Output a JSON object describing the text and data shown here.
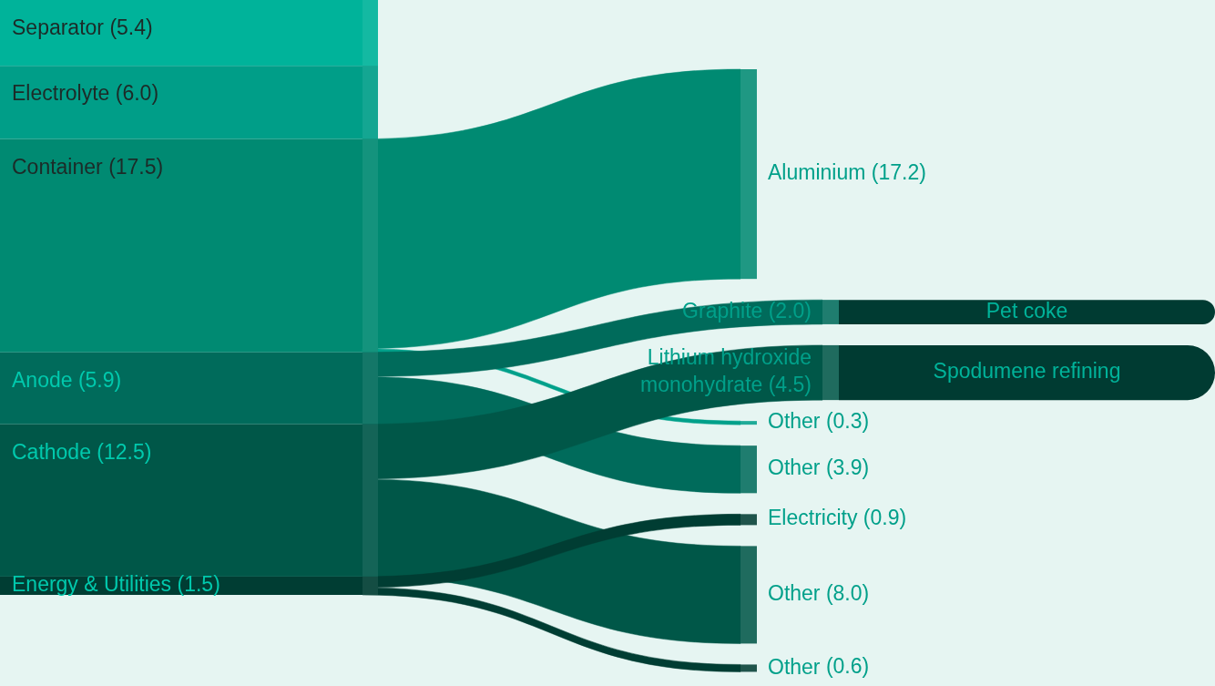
{
  "chart_data": {
    "type": "other",
    "categories": [
      "Separator",
      "Electrolyte",
      "Container",
      "Anode",
      "Cathode",
      "Energy & Utilities",
      "Aluminium",
      "Graphite",
      "Lithium hydroxide monohydrate",
      "Other",
      "Other",
      "Electricity",
      "Other",
      "Other",
      "Pet coke",
      "Spodumene refining"
    ],
    "value_labels": [
      "(5.4)",
      "(6.0)",
      "(17.5)",
      "(5.9)",
      "(12.5)",
      "(1.5)",
      "(17.2)",
      "(2.0)",
      "(4.5)",
      "(0.3)",
      "(3.9)",
      "(0.9)",
      "(8.0)",
      "(0.6)",
      null,
      null
    ],
    "values": [
      5.4,
      6.0,
      17.5,
      5.9,
      12.5,
      1.5,
      17.2,
      2.0,
      4.5,
      0.3,
      3.9,
      0.9,
      8.0,
      0.6,
      null,
      null
    ],
    "colors": [
      "#00b39a",
      "#009e88",
      "#008a72",
      "#006b5b",
      "#005748",
      "#003d33",
      "#008a72",
      "#006b5b",
      "#005748",
      "#00a08a",
      "#006b5b",
      "#003d33",
      "#005748",
      "#003d33",
      "#003b32",
      "#003b32"
    ],
    "cells": [
      [
        null,
        null,
        null,
        null,
        null,
        null,
        null,
        null,
        null,
        null,
        null,
        null,
        null,
        null,
        null,
        null
      ],
      [
        null,
        null,
        null,
        null,
        null,
        null,
        null,
        null,
        null,
        null,
        null,
        null,
        null,
        null,
        null,
        null
      ],
      [
        null,
        null,
        null,
        null,
        null,
        null,
        true,
        null,
        null,
        true,
        null,
        null,
        null,
        null,
        null,
        null
      ],
      [
        null,
        null,
        null,
        null,
        null,
        null,
        null,
        true,
        null,
        null,
        true,
        null,
        null,
        null,
        null,
        null
      ],
      [
        null,
        null,
        null,
        null,
        null,
        null,
        null,
        null,
        true,
        null,
        null,
        null,
        true,
        null,
        null,
        null
      ],
      [
        null,
        null,
        null,
        null,
        null,
        null,
        null,
        null,
        null,
        null,
        null,
        true,
        null,
        true,
        null,
        null
      ],
      [
        null,
        null,
        null,
        null,
        null,
        null,
        null,
        null,
        null,
        null,
        null,
        null,
        null,
        null,
        null,
        null
      ],
      [
        null,
        null,
        null,
        null,
        null,
        null,
        null,
        null,
        null,
        null,
        null,
        null,
        null,
        null,
        true,
        null
      ],
      [
        null,
        null,
        null,
        null,
        null,
        null,
        null,
        null,
        null,
        null,
        null,
        null,
        null,
        null,
        null,
        true
      ],
      [
        null,
        null,
        null,
        null,
        null,
        null,
        null,
        null,
        null,
        null,
        null,
        null,
        null,
        null,
        null,
        null
      ],
      [
        null,
        null,
        null,
        null,
        null,
        null,
        null,
        null,
        null,
        null,
        null,
        null,
        null,
        null,
        null,
        null
      ],
      [
        null,
        null,
        null,
        null,
        null,
        null,
        null,
        null,
        null,
        null,
        null,
        null,
        null,
        null,
        null,
        null
      ],
      [
        null,
        null,
        null,
        null,
        null,
        null,
        null,
        null,
        null,
        null,
        null,
        null,
        null,
        null,
        null,
        null
      ],
      [
        null,
        null,
        null,
        null,
        null,
        null,
        null,
        null,
        null,
        null,
        null,
        null,
        null,
        null,
        null,
        null
      ],
      [
        null,
        null,
        null,
        null,
        null,
        null,
        null,
        null,
        null,
        null,
        null,
        null,
        null,
        null,
        null,
        null
      ],
      [
        null,
        null,
        null,
        null,
        null,
        null,
        null,
        null,
        null,
        null,
        null,
        null,
        null,
        null,
        null,
        null
      ]
    ]
  }
}
